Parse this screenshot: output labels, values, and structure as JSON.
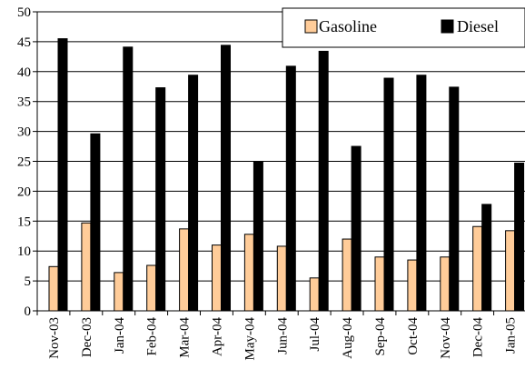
{
  "chart_data": {
    "type": "bar",
    "categories": [
      "Nov-03",
      "Dec-03",
      "Jan-04",
      "Feb-04",
      "Mar-04",
      "Apr-04",
      "May-04",
      "Jun-04",
      "Jul-04",
      "Aug-04",
      "Sep-04",
      "Oct-04",
      "Nov-04",
      "Dec-04",
      "Jan-05"
    ],
    "series": [
      {
        "name": "Gasoline",
        "color": "#FFCC99",
        "values": [
          7.4,
          14.7,
          6.4,
          7.6,
          13.7,
          11.0,
          12.8,
          10.8,
          5.5,
          12.0,
          9.0,
          8.5,
          9.0,
          14.1,
          13.4
        ]
      },
      {
        "name": "Diesel",
        "color": "#000000",
        "values": [
          45.5,
          29.6,
          44.1,
          37.3,
          39.4,
          44.4,
          25.0,
          40.9,
          43.4,
          27.5,
          38.9,
          39.4,
          37.4,
          17.8,
          24.7
        ]
      }
    ],
    "ylim": [
      0,
      50
    ],
    "yticks": [
      0,
      5,
      10,
      15,
      20,
      25,
      30,
      35,
      40,
      45,
      50
    ],
    "grid": true,
    "legend_position": "top-right",
    "title": "",
    "xlabel": "",
    "ylabel": ""
  }
}
